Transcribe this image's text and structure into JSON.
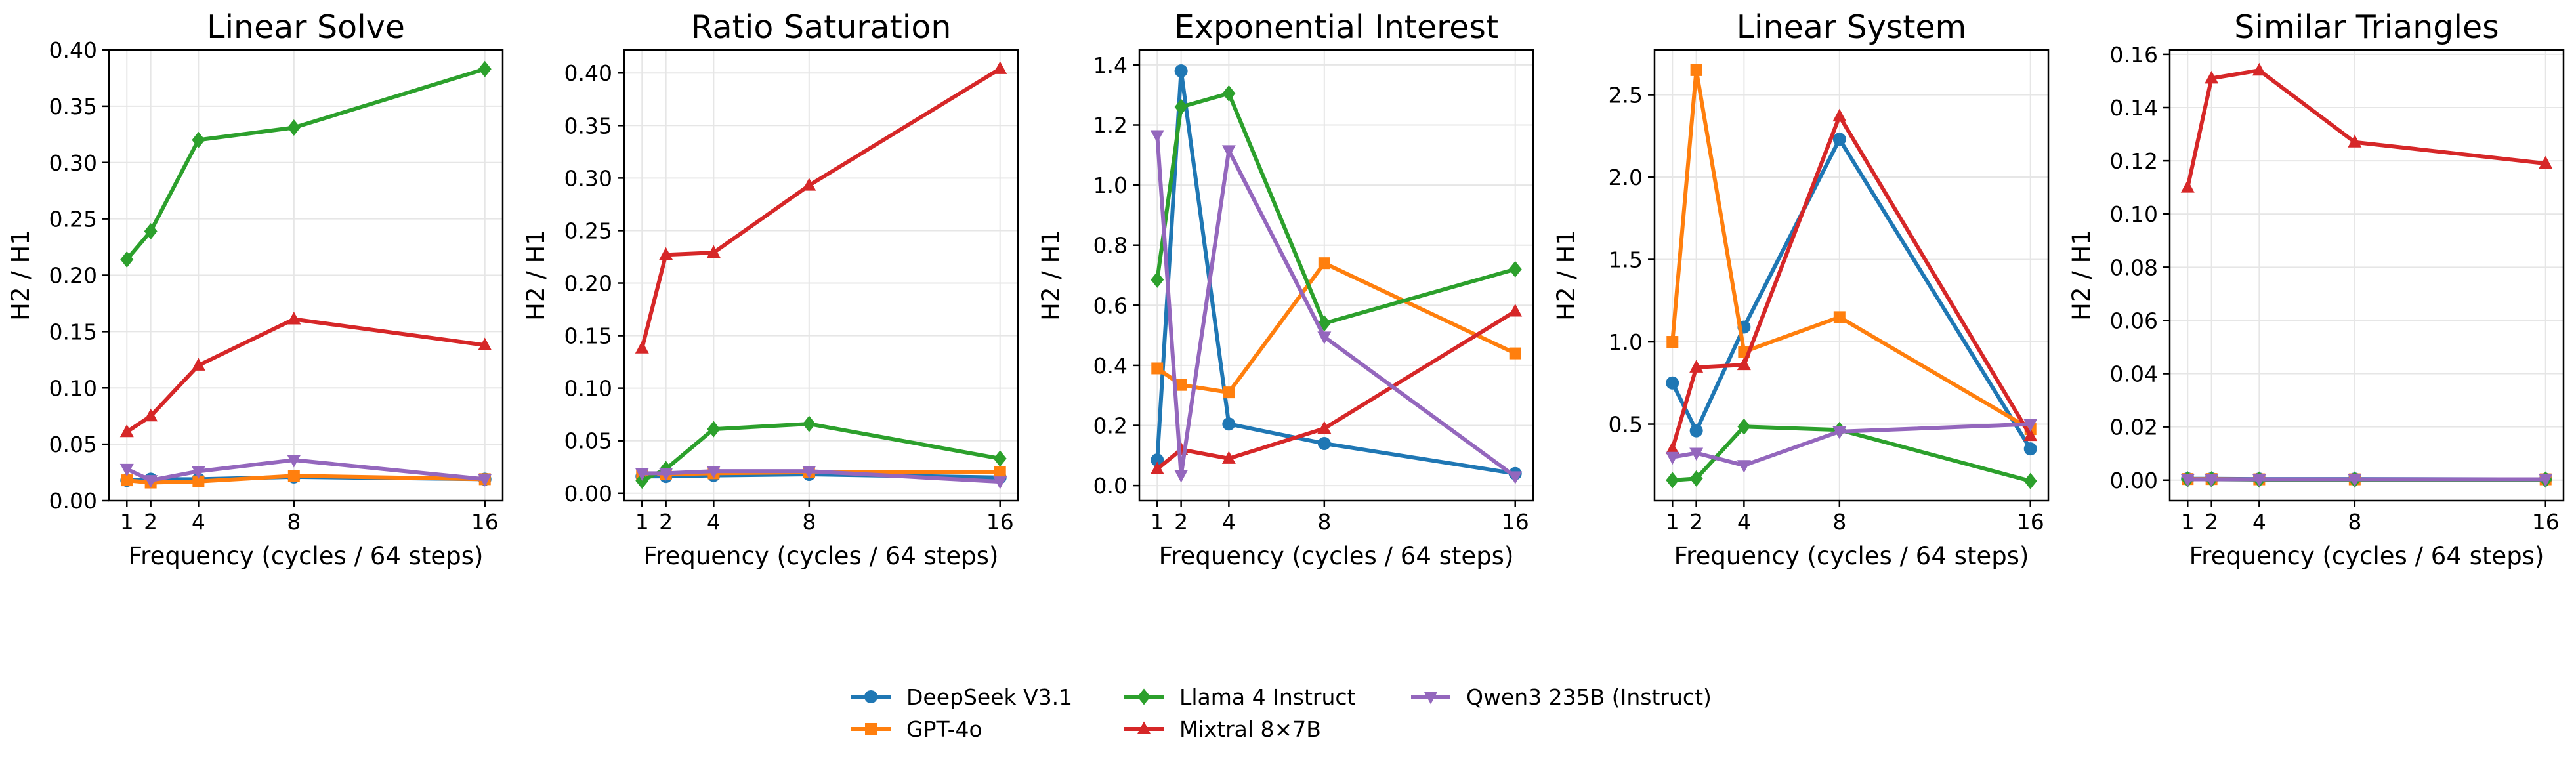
{
  "colors": {
    "DeepSeek V3.1": "#1f77b4",
    "GPT-4o": "#ff7f0e",
    "Llama 4 Instruct": "#2ca02c",
    "Mixtral 8×7B": "#d62728",
    "Qwen3 235B (Instruct)": "#9467bd"
  },
  "markers": {
    "DeepSeek V3.1": "circle",
    "GPT-4o": "square",
    "Llama 4 Instruct": "diamond",
    "Mixtral 8×7B": "triangle-up",
    "Qwen3 235B (Instruct)": "triangle-down"
  },
  "legend": {
    "placement": "bottom-center",
    "entries": [
      "DeepSeek V3.1",
      "GPT-4o",
      "Llama 4 Instruct",
      "Mixtral 8×7B",
      "Qwen3 235B (Instruct)"
    ]
  },
  "chart_data": [
    {
      "type": "line",
      "title": "Linear Solve",
      "xlabel": "Frequency (cycles / 64 steps)",
      "ylabel": "H2 / H1",
      "x": [
        1,
        2,
        4,
        8,
        16
      ],
      "xticks": [
        1,
        2,
        4,
        8,
        16
      ],
      "xlim": [
        0.25,
        16.75
      ],
      "ylim": [
        0,
        0.4
      ],
      "yticks": [
        "0.00",
        "0.05",
        "0.10",
        "0.15",
        "0.20",
        "0.25",
        "0.30",
        "0.35",
        "0.40"
      ],
      "grid": true,
      "series": [
        {
          "name": "DeepSeek V3.1",
          "values": [
            0.018,
            0.019,
            0.019,
            0.021,
            0.019
          ]
        },
        {
          "name": "GPT-4o",
          "values": [
            0.018,
            0.016,
            0.017,
            0.022,
            0.019
          ]
        },
        {
          "name": "Llama 4 Instruct",
          "values": [
            0.214,
            0.239,
            0.32,
            0.331,
            0.383
          ]
        },
        {
          "name": "Mixtral 8×7B",
          "values": [
            0.061,
            0.075,
            0.12,
            0.161,
            0.138
          ]
        },
        {
          "name": "Qwen3 235B (Instruct)",
          "values": [
            0.028,
            0.018,
            0.026,
            0.036,
            0.019
          ]
        }
      ]
    },
    {
      "type": "line",
      "title": "Ratio Saturation",
      "xlabel": "Frequency (cycles / 64 steps)",
      "ylabel": "H2 / H1",
      "x": [
        1,
        2,
        4,
        8,
        16
      ],
      "xticks": [
        1,
        2,
        4,
        8,
        16
      ],
      "xlim": [
        0.25,
        16.75
      ],
      "ylim": [
        -0.007,
        0.422
      ],
      "yticks": [
        "0.00",
        "0.05",
        "0.10",
        "0.15",
        "0.20",
        "0.25",
        "0.30",
        "0.35",
        "0.40"
      ],
      "grid": true,
      "series": [
        {
          "name": "DeepSeek V3.1",
          "values": [
            0.016,
            0.016,
            0.017,
            0.018,
            0.015
          ]
        },
        {
          "name": "GPT-4o",
          "values": [
            0.018,
            0.018,
            0.019,
            0.02,
            0.02
          ]
        },
        {
          "name": "Llama 4 Instruct",
          "values": [
            0.012,
            0.023,
            0.061,
            0.066,
            0.033
          ]
        },
        {
          "name": "Mixtral 8×7B",
          "values": [
            0.138,
            0.227,
            0.229,
            0.293,
            0.404
          ]
        },
        {
          "name": "Qwen3 235B (Instruct)",
          "values": [
            0.019,
            0.019,
            0.021,
            0.021,
            0.011
          ]
        }
      ]
    },
    {
      "type": "line",
      "title": "Exponential Interest",
      "xlabel": "Frequency (cycles / 64 steps)",
      "ylabel": "H2 / H1",
      "x": [
        1,
        2,
        4,
        8,
        16
      ],
      "xticks": [
        1,
        2,
        4,
        8,
        16
      ],
      "xlim": [
        0.25,
        16.75
      ],
      "ylim": [
        -0.05,
        1.45
      ],
      "yticks": [
        "0.0",
        "0.2",
        "0.4",
        "0.6",
        "0.8",
        "1.0",
        "1.2",
        "1.4"
      ],
      "grid": true,
      "series": [
        {
          "name": "DeepSeek V3.1",
          "values": [
            0.085,
            1.38,
            0.205,
            0.14,
            0.04
          ]
        },
        {
          "name": "GPT-4o",
          "values": [
            0.39,
            0.335,
            0.31,
            0.74,
            0.44
          ]
        },
        {
          "name": "Llama 4 Instruct",
          "values": [
            0.685,
            1.26,
            1.305,
            0.54,
            0.72
          ]
        },
        {
          "name": "Mixtral 8×7B",
          "values": [
            0.055,
            0.12,
            0.09,
            0.19,
            0.58
          ]
        },
        {
          "name": "Qwen3 235B (Instruct)",
          "values": [
            1.165,
            0.035,
            1.115,
            0.495,
            0.03
          ]
        }
      ]
    },
    {
      "type": "line",
      "title": "Linear System",
      "xlabel": "Frequency (cycles / 64 steps)",
      "ylabel": "H2 / H1",
      "x": [
        1,
        2,
        4,
        8,
        16
      ],
      "xticks": [
        1,
        2,
        4,
        8,
        16
      ],
      "xlim": [
        0.25,
        16.75
      ],
      "ylim": [
        0.036,
        2.773
      ],
      "yticks": [
        "0.5",
        "1.0",
        "1.5",
        "2.0",
        "2.5"
      ],
      "grid": true,
      "series": [
        {
          "name": "DeepSeek V3.1",
          "values": [
            0.75,
            0.46,
            1.09,
            2.23,
            0.35
          ]
        },
        {
          "name": "GPT-4o",
          "values": [
            1.0,
            2.65,
            0.94,
            1.15,
            0.47
          ]
        },
        {
          "name": "Llama 4 Instruct",
          "values": [
            0.16,
            0.17,
            0.485,
            0.465,
            0.155
          ]
        },
        {
          "name": "Mixtral 8×7B",
          "values": [
            0.35,
            0.845,
            0.86,
            2.37,
            0.43
          ]
        },
        {
          "name": "Qwen3 235B (Instruct)",
          "values": [
            0.3,
            0.325,
            0.25,
            0.455,
            0.5
          ]
        }
      ]
    },
    {
      "type": "line",
      "title": "Similar Triangles",
      "xlabel": "Frequency (cycles / 64 steps)",
      "ylabel": "H2 / H1",
      "x": [
        1,
        2,
        4,
        8,
        16
      ],
      "xticks": [
        1,
        2,
        4,
        8,
        16
      ],
      "xlim": [
        0.25,
        16.75
      ],
      "ylim": [
        -0.0077,
        0.1617
      ],
      "yticks": [
        "0.00",
        "0.02",
        "0.04",
        "0.06",
        "0.08",
        "0.10",
        "0.12",
        "0.14",
        "0.16"
      ],
      "grid": true,
      "series": [
        {
          "name": "DeepSeek V3.1",
          "values": [
            0.0005,
            0.0005,
            0.0004,
            0.0004,
            0.0003
          ]
        },
        {
          "name": "GPT-4o",
          "values": [
            0.0004,
            0.0004,
            0.0003,
            0.0003,
            0.0003
          ]
        },
        {
          "name": "Llama 4 Instruct",
          "values": [
            0.0003,
            0.0003,
            0.0002,
            0.0002,
            0.0002
          ]
        },
        {
          "name": "Mixtral 8×7B",
          "values": [
            0.11,
            0.151,
            0.154,
            0.127,
            0.119
          ]
        },
        {
          "name": "Qwen3 235B (Instruct)",
          "values": [
            0.0003,
            0.0003,
            0.0003,
            0.0003,
            0.0003
          ]
        }
      ]
    }
  ]
}
